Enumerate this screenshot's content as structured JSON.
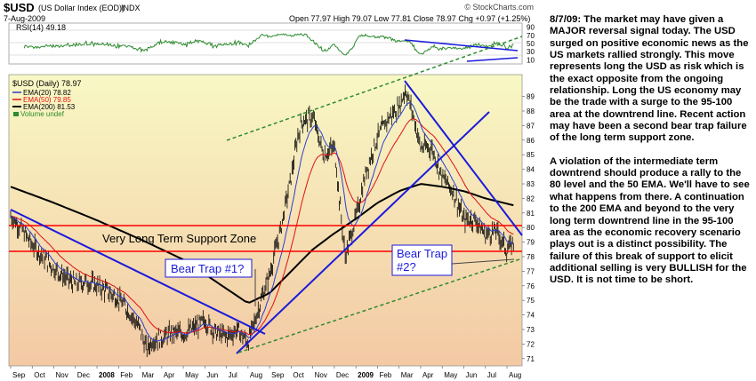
{
  "header": {
    "symbol": "$USD",
    "name": "(US Dollar Index (EOD))",
    "exchange": "INDX",
    "date": "7-Aug-2009",
    "open_label": "Open",
    "open": "77.97",
    "high_label": "High",
    "high": "79.07",
    "low_label": "Low",
    "low": "77.81",
    "close_label": "Close",
    "close": "78.97",
    "chg_label": "Chg",
    "chg": "+0.97 (+1.25%)",
    "watermark": "© StockCharts.com"
  },
  "rsi_panel": {
    "label": "RSI(14) 49.18",
    "ticks": [
      "90",
      "70",
      "50",
      "30",
      "10"
    ],
    "value": 49.18
  },
  "legend": {
    "main": "$USD (Daily) 78.97",
    "ema20": "EMA(20) 78.82",
    "ema50": "EMA(50) 79.85",
    "ema200": "EMA(200) 81.53",
    "volume": "Volume undef"
  },
  "annotations": {
    "support_zone": "Very Long Term Support Zone",
    "bear_trap_1": "Bear Trap #1?",
    "bear_trap_2_line1": "Bear Trap",
    "bear_trap_2_line2": "#2?"
  },
  "commentary": [
    "8/7/09: The market may have given a MAJOR reversal signal today. The USD surged on positive economic news as the US markets rallied strongly. This move represents long the USD as risk which is the exact opposite from the ongoing relationship. Long the US economy may be the trade with a surge to the 95-100 area at the downtrend line. Recent action may have been a second bear trap failure of the long term support zone.",
    "A violation of the intermediate term downtrend should produce a rally to the 80 level and the 50 EMA. We'll have to see what happens from there. A continuation to the 200 EMA and beyond to the very long term downtrend line in the 95-100 area as the economic recovery scenario plays out is a distinct possibility. The failure of this break of support to elicit additional selling is very BULLISH for the USD. It is not time to be short."
  ],
  "colors": {
    "price": "#000000",
    "ema20": "#2b3fcf",
    "ema50": "#e01010",
    "ema200": "#000000",
    "trendline": "#1a1adc",
    "channel": "#2e8b2e",
    "support": "#ff0000",
    "rsi": "#2e8b2e",
    "bg_top": "#f8f8c4",
    "bg_bottom": "#f3c9a4"
  },
  "chart_data": {
    "type": "line",
    "title": "$USD (US Dollar Index (EOD)) INDX",
    "xlabel": "",
    "ylabel": "",
    "x_ticks": [
      "Sep",
      "Oct",
      "Nov",
      "Dec",
      "2008",
      "Feb",
      "Mar",
      "Apr",
      "May",
      "Jun",
      "Jul",
      "Aug",
      "Sep",
      "Oct",
      "Nov",
      "Dec",
      "2009",
      "Feb",
      "Mar",
      "Apr",
      "May",
      "Jun",
      "Jul",
      "Aug"
    ],
    "y_ticks": [
      71,
      72,
      73,
      74,
      75,
      76,
      77,
      78,
      79,
      80,
      81,
      82,
      83,
      84,
      85,
      86,
      87,
      88,
      89
    ],
    "ylim": [
      70.5,
      90.5
    ],
    "grid": "off",
    "series": [
      {
        "name": "$USD (Daily)",
        "x": [
          0,
          0.5,
          1,
          1.5,
          2,
          2.5,
          3,
          3.5,
          4,
          4.5,
          5,
          5.5,
          6,
          6.3,
          6.6,
          7,
          7.5,
          8,
          8.5,
          9,
          9.5,
          10,
          10.5,
          11,
          11.5,
          12,
          12.5,
          13,
          13.3,
          13.5,
          14,
          14.5,
          15,
          15.3,
          15.5,
          16,
          16.5,
          17,
          17.5,
          18,
          18.3,
          18.6,
          19,
          19.5,
          20,
          20.5,
          21,
          21.5,
          22,
          22.5,
          23,
          23.3
        ],
        "values": [
          80.8,
          79.9,
          78.8,
          78.0,
          77.2,
          76.6,
          76.1,
          76.3,
          76.0,
          75.6,
          75.1,
          74.2,
          73.0,
          71.6,
          72.3,
          72.4,
          72.8,
          72.7,
          73.1,
          73.6,
          72.8,
          72.5,
          73.0,
          72.1,
          74.5,
          76.8,
          79.8,
          83.5,
          86.2,
          87.3,
          87.6,
          85.0,
          85.5,
          81.0,
          78.0,
          80.7,
          84.0,
          86.2,
          87.5,
          88.3,
          89.5,
          88.0,
          85.5,
          85.5,
          83.5,
          82.5,
          80.5,
          80.6,
          79.5,
          79.8,
          78.4,
          78.97
        ]
      },
      {
        "name": "EMA(20)",
        "value_label": "78.82"
      },
      {
        "name": "EMA(50)",
        "value_label": "79.85"
      },
      {
        "name": "EMA(200)",
        "x": [
          0,
          2,
          4,
          6,
          8,
          10,
          11,
          12,
          13,
          14,
          15,
          16,
          17,
          18,
          19,
          20,
          21,
          22,
          23.3
        ],
        "values": [
          82.8,
          81.7,
          80.5,
          79.2,
          77.8,
          75.8,
          74.8,
          75.5,
          77.0,
          78.5,
          79.6,
          80.6,
          81.7,
          82.5,
          83.0,
          82.8,
          82.5,
          82.0,
          81.53
        ]
      }
    ]
  }
}
